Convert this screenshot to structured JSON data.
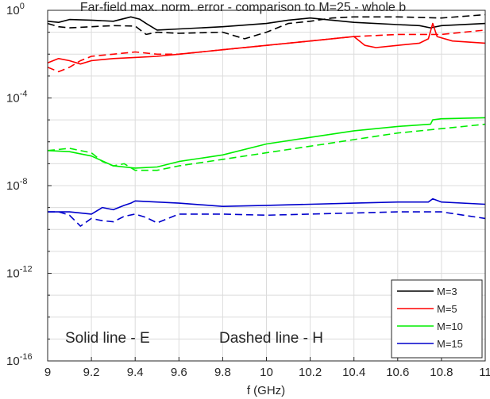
{
  "chart_data": {
    "type": "line",
    "title": "Far-field max. norm. error - comparison to M=25 - whole b",
    "xlabel": "f (GHz)",
    "ylabel": "",
    "xlim": [
      9,
      11
    ],
    "ylim_log10": [
      -16,
      0
    ],
    "yscale": "log",
    "grid": true,
    "x_ticks": [
      "9",
      "9.2",
      "9.4",
      "9.6",
      "9.8",
      "10",
      "10.2",
      "10.4",
      "10.6",
      "10.8",
      "11"
    ],
    "y_ticks": [
      {
        "base": "10",
        "exp": "0",
        "value_log10": 0
      },
      {
        "base": "10",
        "exp": "-4",
        "value_log10": -4
      },
      {
        "base": "10",
        "exp": "-8",
        "value_log10": -8
      },
      {
        "base": "10",
        "exp": "-12",
        "value_log10": -12
      },
      {
        "base": "10",
        "exp": "-16",
        "value_log10": -16
      }
    ],
    "annotations": [
      {
        "text": "Solid line - E"
      },
      {
        "text": "Dashed line - H"
      }
    ],
    "legend": {
      "location": "bottom-right",
      "entries": [
        {
          "label": "M=3",
          "color": "#000000"
        },
        {
          "label": "M=5",
          "color": "#ff0000"
        },
        {
          "label": "M=10",
          "color": "#00ee00"
        },
        {
          "label": "M=15",
          "color": "#0000cc"
        }
      ]
    },
    "series": [
      {
        "name": "M=3",
        "style": "solid",
        "color": "#000000",
        "x": [
          9.0,
          9.05,
          9.1,
          9.2,
          9.3,
          9.38,
          9.42,
          9.45,
          9.5,
          9.6,
          9.8,
          10.0,
          10.1,
          10.2,
          10.4,
          10.6,
          10.7,
          10.75,
          10.8,
          11.0
        ],
        "y_log10": [
          -0.5,
          -0.55,
          -0.42,
          -0.45,
          -0.5,
          -0.3,
          -0.4,
          -0.6,
          -0.9,
          -0.85,
          -0.75,
          -0.6,
          -0.45,
          -0.35,
          -0.55,
          -0.65,
          -0.7,
          -0.8,
          -0.7,
          -0.6
        ]
      },
      {
        "name": "M=3",
        "style": "dashed",
        "color": "#000000",
        "x": [
          9.0,
          9.05,
          9.1,
          9.2,
          9.3,
          9.4,
          9.45,
          9.5,
          9.6,
          9.8,
          9.9,
          10.0,
          10.1,
          10.2,
          10.3,
          10.4,
          10.6,
          10.8,
          11.0
        ],
        "y_log10": [
          -0.6,
          -0.75,
          -0.8,
          -0.75,
          -0.7,
          -0.72,
          -1.1,
          -1.0,
          -1.05,
          -1.0,
          -1.3,
          -1.0,
          -0.6,
          -0.5,
          -0.35,
          -0.3,
          -0.3,
          -0.35,
          -0.2
        ]
      },
      {
        "name": "M=5",
        "style": "solid",
        "color": "#ff0000",
        "x": [
          9.0,
          9.05,
          9.1,
          9.15,
          9.2,
          9.3,
          9.4,
          9.5,
          9.6,
          9.8,
          10.0,
          10.2,
          10.4,
          10.45,
          10.5,
          10.6,
          10.7,
          10.74,
          10.76,
          10.78,
          10.85,
          11.0
        ],
        "y_log10": [
          -2.4,
          -2.2,
          -2.3,
          -2.45,
          -2.3,
          -2.2,
          -2.15,
          -2.1,
          -2.0,
          -1.8,
          -1.6,
          -1.4,
          -1.2,
          -1.6,
          -1.7,
          -1.6,
          -1.5,
          -1.3,
          -0.6,
          -1.2,
          -1.4,
          -1.5
        ]
      },
      {
        "name": "M=5",
        "style": "dashed",
        "color": "#ff0000",
        "x": [
          9.0,
          9.05,
          9.1,
          9.15,
          9.2,
          9.3,
          9.4,
          9.5,
          9.6,
          9.8,
          10.0,
          10.2,
          10.4,
          10.6,
          10.8,
          11.0
        ],
        "y_log10": [
          -2.6,
          -2.8,
          -2.6,
          -2.3,
          -2.1,
          -2.0,
          -1.9,
          -2.0,
          -2.0,
          -1.8,
          -1.6,
          -1.4,
          -1.2,
          -1.1,
          -1.1,
          -0.9
        ]
      },
      {
        "name": "M=10",
        "style": "solid",
        "color": "#00ee00",
        "x": [
          9.0,
          9.1,
          9.2,
          9.3,
          9.4,
          9.5,
          9.6,
          9.8,
          10.0,
          10.2,
          10.4,
          10.6,
          10.75,
          10.76,
          10.8,
          11.0
        ],
        "y_log10": [
          -6.4,
          -6.45,
          -6.65,
          -7.1,
          -7.2,
          -7.15,
          -6.9,
          -6.6,
          -6.1,
          -5.8,
          -5.5,
          -5.3,
          -5.2,
          -5.0,
          -4.95,
          -4.9
        ]
      },
      {
        "name": "M=10",
        "style": "dashed",
        "color": "#00ee00",
        "x": [
          9.0,
          9.1,
          9.2,
          9.25,
          9.3,
          9.35,
          9.4,
          9.5,
          9.6,
          9.8,
          10.0,
          10.2,
          10.4,
          10.6,
          10.8,
          11.0
        ],
        "y_log10": [
          -6.4,
          -6.3,
          -6.5,
          -6.9,
          -7.1,
          -7.0,
          -7.3,
          -7.3,
          -7.1,
          -6.8,
          -6.5,
          -6.2,
          -5.9,
          -5.6,
          -5.4,
          -5.2
        ]
      },
      {
        "name": "M=15",
        "style": "solid",
        "color": "#0000cc",
        "x": [
          9.0,
          9.1,
          9.2,
          9.25,
          9.3,
          9.35,
          9.38,
          9.4,
          9.5,
          9.6,
          9.8,
          10.0,
          10.2,
          10.4,
          10.6,
          10.74,
          10.76,
          10.8,
          11.0
        ],
        "y_log10": [
          -9.2,
          -9.2,
          -9.3,
          -9.0,
          -9.1,
          -8.9,
          -8.8,
          -8.7,
          -8.75,
          -8.8,
          -8.95,
          -8.9,
          -8.85,
          -8.8,
          -8.75,
          -8.75,
          -8.6,
          -8.75,
          -8.85
        ]
      },
      {
        "name": "M=15",
        "style": "dashed",
        "color": "#0000cc",
        "x": [
          9.0,
          9.05,
          9.1,
          9.15,
          9.2,
          9.25,
          9.3,
          9.35,
          9.4,
          9.45,
          9.5,
          9.6,
          9.8,
          10.0,
          10.2,
          10.4,
          10.6,
          10.8,
          11.0
        ],
        "y_log10": [
          -9.2,
          -9.2,
          -9.35,
          -9.85,
          -9.5,
          -9.6,
          -9.65,
          -9.4,
          -9.3,
          -9.45,
          -9.7,
          -9.3,
          -9.3,
          -9.35,
          -9.3,
          -9.25,
          -9.2,
          -9.2,
          -9.5
        ]
      }
    ]
  }
}
